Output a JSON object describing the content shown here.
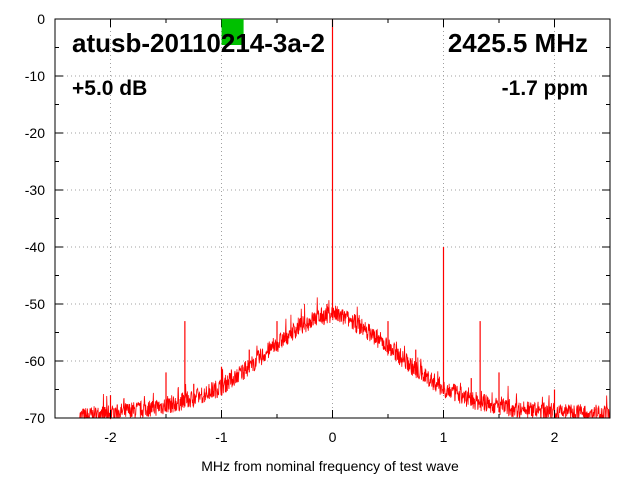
{
  "chart_data": {
    "type": "line",
    "title": "",
    "xlabel": "MHz from nominal frequency of test wave",
    "ylabel": "",
    "xlim": [
      -2.5,
      2.5
    ],
    "ylim": [
      -70,
      0
    ],
    "x_ticks": [
      -2,
      -1,
      0,
      1,
      2
    ],
    "y_ticks": [
      0,
      -10,
      -20,
      -30,
      -40,
      -50,
      -60,
      -70
    ],
    "grid": true,
    "legend": "none",
    "series_color": "#ff0000",
    "marker_color": "#00c000",
    "annotations": {
      "device": "atusb-20110214-3a-2",
      "frequency": "2425.5 MHz",
      "gain": "+5.0 dB",
      "offset": "-1.7 ppm"
    },
    "marker": {
      "x": -0.9
    },
    "series": [
      {
        "name": "",
        "noise_floor": {
          "x": [
            -2.28,
            -2.0,
            -1.75,
            -1.5,
            -1.25,
            -1.0,
            -0.75,
            -0.5,
            -0.3,
            -0.15,
            -0.05,
            0.0,
            0.05,
            0.15,
            0.3,
            0.5,
            0.75,
            1.0,
            1.25,
            1.5,
            1.75,
            2.0,
            2.25,
            2.5
          ],
          "y": [
            -69.8,
            -69.2,
            -68.6,
            -67.8,
            -66.6,
            -64.5,
            -61.0,
            -57.0,
            -54.0,
            -52.5,
            -52.0,
            -51.5,
            -52.0,
            -52.8,
            -54.5,
            -57.5,
            -61.5,
            -64.8,
            -66.8,
            -68.0,
            -68.6,
            -68.9,
            -69.1,
            -69.3
          ]
        },
        "spikes": {
          "x": [
            -2.0,
            -1.5,
            -1.33,
            -1.25,
            -1.0,
            -0.75,
            -0.5,
            -0.05,
            0.0,
            0.05,
            0.5,
            0.75,
            1.0,
            1.25,
            1.33,
            1.5,
            2.0
          ],
          "y": [
            -66,
            -62,
            -53,
            -64,
            -61,
            -58,
            -53,
            -50,
            0,
            -51,
            -53,
            -58,
            -40,
            -63,
            -53,
            -62,
            -65
          ]
        }
      }
    ]
  }
}
